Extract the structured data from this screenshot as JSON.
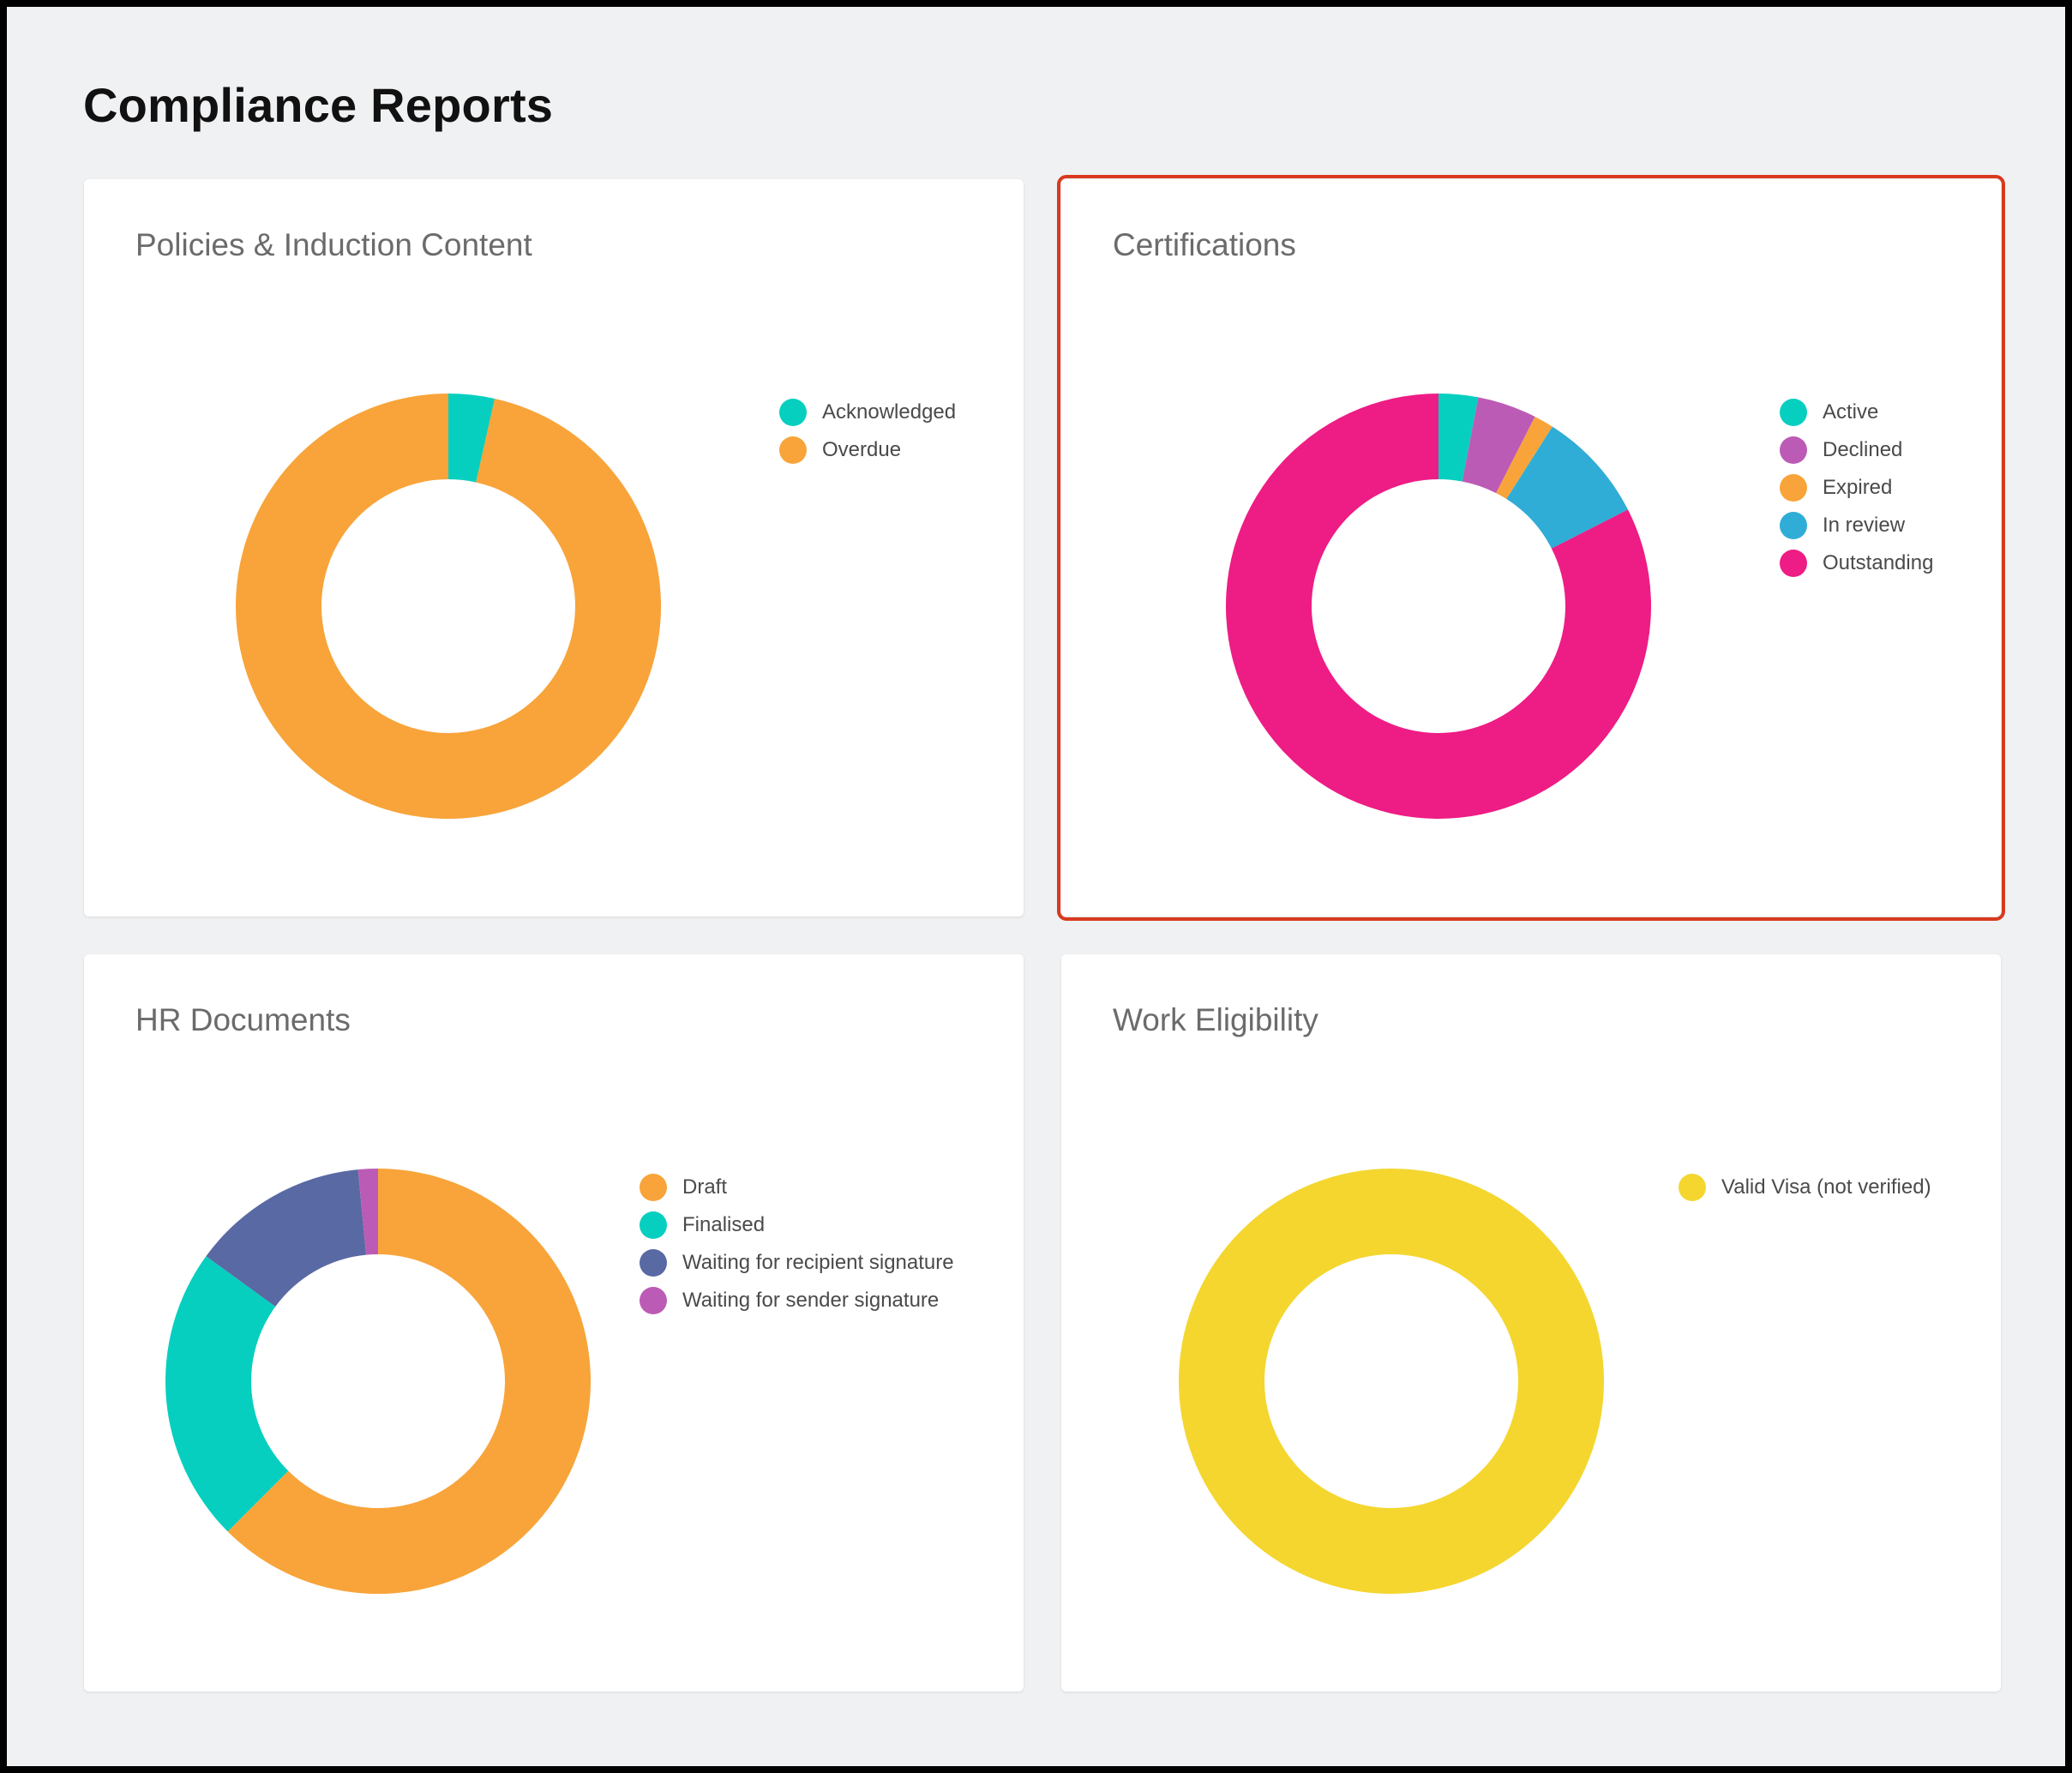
{
  "page": {
    "title": "Compliance Reports"
  },
  "charts": [
    {
      "id": "policies",
      "title": "Policies & Induction Content",
      "highlighted": false,
      "chart_data": {
        "type": "pie",
        "title": "Policies & Induction Content",
        "series": [
          {
            "name": "Acknowledged",
            "value": 3.5,
            "color": "#07cfbf"
          },
          {
            "name": "Overdue",
            "value": 96.5,
            "color": "#f8a43a"
          }
        ],
        "legend": "right"
      }
    },
    {
      "id": "certifications",
      "title": "Certifications",
      "highlighted": true,
      "chart_data": {
        "type": "pie",
        "title": "Certifications",
        "series": [
          {
            "name": "Active",
            "value": 3.0,
            "color": "#07cfbf"
          },
          {
            "name": "Declined",
            "value": 4.5,
            "color": "#bc5bb5"
          },
          {
            "name": "Expired",
            "value": 1.5,
            "color": "#f8a43a"
          },
          {
            "name": "In review",
            "value": 8.5,
            "color": "#2fadd6"
          },
          {
            "name": "Outstanding",
            "value": 82.5,
            "color": "#ee1c85"
          }
        ],
        "legend": "right"
      }
    },
    {
      "id": "hr-documents",
      "title": "HR Documents",
      "highlighted": false,
      "chart_data": {
        "type": "pie",
        "title": "HR Documents",
        "series": [
          {
            "name": "Draft",
            "value": 62.5,
            "color": "#f8a43a"
          },
          {
            "name": "Finalised",
            "value": 22.5,
            "color": "#07cfbf"
          },
          {
            "name": "Waiting for recipient signature",
            "value": 13.5,
            "color": "#5969a3"
          },
          {
            "name": "Waiting for sender signature",
            "value": 1.5,
            "color": "#bc5bb5"
          }
        ],
        "order": [
          "Draft",
          "Finalised",
          "Waiting for recipient signature",
          "Waiting for sender signature"
        ],
        "legend": "right"
      }
    },
    {
      "id": "work-eligibility",
      "title": "Work Eligibility",
      "highlighted": false,
      "chart_data": {
        "type": "pie",
        "title": "Work Eligibility",
        "series": [
          {
            "name": "Valid Visa (not verified)",
            "value": 100,
            "color": "#f4d62f"
          }
        ],
        "legend": "right"
      }
    }
  ]
}
